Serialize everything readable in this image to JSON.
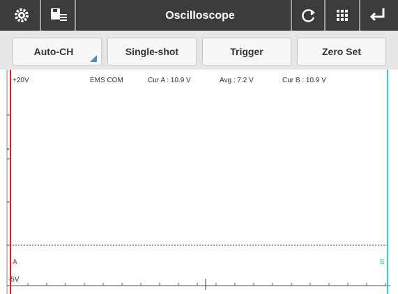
{
  "header": {
    "title": "Oscilloscope"
  },
  "buttons": [
    "Auto-CH",
    "Single-shot",
    "Trigger",
    "Zero Set"
  ],
  "scope": {
    "top_label": "+20V",
    "channel": "EMS COM",
    "cur_a": "Cur A : 10.9 V",
    "avg": "Avg : 7.2 V",
    "cur_b": "Cur B : 10.9 V",
    "cursor_a": "A",
    "cursor_b": "B",
    "bottom_label": "-5V"
  }
}
